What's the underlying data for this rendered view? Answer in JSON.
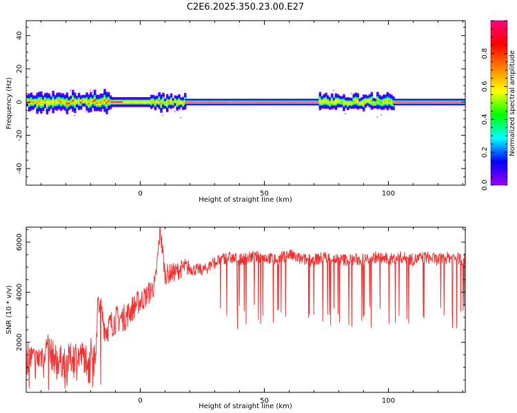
{
  "title": "C2E6.2025.350.23.00.E27",
  "chart_data": [
    {
      "type": "heatmap",
      "xlabel": "Height of straight line (km)",
      "ylabel": "Frequency (Hz)",
      "xlim": [
        -46,
        131
      ],
      "ylim": [
        -50,
        49
      ],
      "x_ticks": [
        0,
        50,
        100
      ],
      "y_ticks": [
        -40,
        -20,
        0,
        20,
        40
      ],
      "colorbar": {
        "label": "Normalized spectral amplitude",
        "range": [
          0.0,
          1.0
        ],
        "ticks": [
          0.0,
          0.2,
          0.4,
          0.6,
          0.8
        ],
        "colormap": [
          "#9900ff",
          "#0000ff",
          "#00ffff",
          "#00ff00",
          "#ffff00",
          "#ff8000",
          "#ff0000",
          "#ff0080"
        ]
      },
      "band": [
        {
          "x0": -46,
          "x1": -12,
          "halfwidth_hz": 5,
          "peak": 0.75,
          "noisy": true
        },
        {
          "x0": -12,
          "x1": -7,
          "halfwidth_hz": 3,
          "peak": 0.95,
          "noisy": false
        },
        {
          "x0": -7,
          "x1": 4,
          "halfwidth_hz": 3,
          "peak": 0.55,
          "noisy": false
        },
        {
          "x0": 4,
          "x1": 18,
          "halfwidth_hz": 4,
          "peak": 0.7,
          "noisy": true
        },
        {
          "x0": 18,
          "x1": 72,
          "halfwidth_hz": 2,
          "peak": 1.0,
          "noisy": false
        },
        {
          "x0": 72,
          "x1": 102,
          "halfwidth_hz": 4,
          "peak": 0.6,
          "noisy": true
        },
        {
          "x0": 102,
          "x1": 131,
          "halfwidth_hz": 2,
          "peak": 1.0,
          "noisy": false
        }
      ]
    },
    {
      "type": "line",
      "xlabel": "Height of straight line (km)",
      "ylabel": "SNR (10 * v/v)",
      "xlim": [
        -46,
        131
      ],
      "ylim": [
        0,
        6600
      ],
      "x_ticks": [
        0,
        50,
        100
      ],
      "y_ticks": [
        2000,
        4000,
        6000
      ],
      "series": [
        {
          "color": "#ee3333",
          "x": [
            -46,
            -42,
            -38,
            -34,
            -30,
            -26,
            -22,
            -18,
            -17,
            -14,
            -10,
            -6,
            -2,
            2,
            6,
            8,
            10,
            14,
            18,
            22,
            26,
            30,
            35,
            40,
            45,
            50,
            55,
            60,
            65,
            70,
            75,
            80,
            85,
            90,
            95,
            100,
            105,
            110,
            115,
            120,
            125,
            131
          ],
          "y": [
            1500,
            1200,
            1800,
            1300,
            1200,
            1500,
            1400,
            1700,
            3600,
            2500,
            2900,
            3000,
            3500,
            3800,
            4300,
            6500,
            4700,
            4800,
            5000,
            4900,
            4900,
            5200,
            5400,
            5300,
            5400,
            5400,
            5300,
            5500,
            5300,
            5300,
            5400,
            5300,
            5300,
            5300,
            5400,
            5300,
            5400,
            5300,
            5400,
            5300,
            5400,
            5300
          ],
          "dip_region_km": [
            28,
            131
          ],
          "dip_depth_typical": [
            2500,
            3500
          ]
        }
      ]
    }
  ]
}
